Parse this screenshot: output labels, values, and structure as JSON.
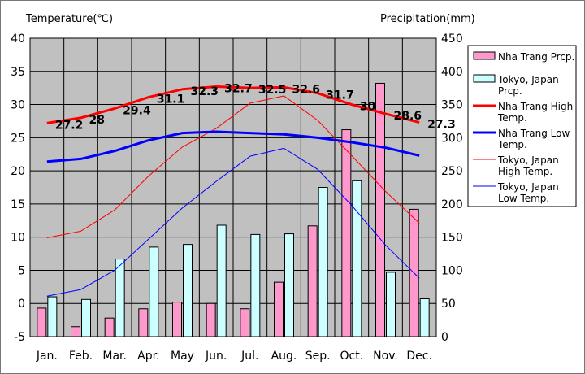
{
  "chart_data": {
    "type": "bar",
    "y_left_label": "Temperature(℃)",
    "y_right_label": "Precipitation(mm)",
    "y_left_range": [
      -5,
      40
    ],
    "y_left_ticks": [
      40,
      35,
      30,
      25,
      20,
      15,
      10,
      5,
      0,
      -5
    ],
    "y_right_range": [
      0,
      450
    ],
    "y_right_ticks": [
      450,
      400,
      350,
      300,
      250,
      200,
      150,
      100,
      50,
      0
    ],
    "grid": true,
    "plot_background": "#c0c0c0",
    "legend_placement": "right",
    "categories": [
      "Jan.",
      "Feb.",
      "Mar.",
      "Apr.",
      "May",
      "Jun.",
      "Jul.",
      "Aug.",
      "Sep.",
      "Oct.",
      "Nov.",
      "Dec."
    ],
    "bar_series": [
      {
        "name": "Nha Trang Prcp.",
        "axis": "right",
        "color": "#ff99cc",
        "values": [
          43,
          15,
          28,
          42,
          52,
          50,
          42,
          82,
          167,
          312,
          382,
          192
        ]
      },
      {
        "name": "Tokyo, Japan Prcp.",
        "axis": "right",
        "color": "#ccffff",
        "values": [
          60,
          56,
          117,
          135,
          139,
          168,
          154,
          155,
          225,
          235,
          97,
          57
        ]
      }
    ],
    "line_series": [
      {
        "name": "Nha Trang High Temp.",
        "axis": "left",
        "color": "#ff0000",
        "width": 3,
        "values": [
          27.2,
          28,
          29.4,
          31.1,
          32.3,
          32.7,
          32.5,
          32.6,
          31.7,
          30,
          28.6,
          27.3
        ],
        "labels": [
          "27.2",
          "28",
          "29.4",
          "31.1",
          "32.3",
          "32.7",
          "32.5",
          "32.6",
          "31.7",
          "30",
          "28.6",
          "27.3"
        ]
      },
      {
        "name": "Nha Trang Low Temp.",
        "axis": "left",
        "color": "#0000ff",
        "width": 3,
        "values": [
          21.4,
          21.8,
          23,
          24.6,
          25.7,
          25.9,
          25.7,
          25.5,
          25,
          24.3,
          23.5,
          22.3
        ]
      },
      {
        "name": "Tokyo, Japan High Temp.",
        "axis": "left",
        "color": "#ff0000",
        "width": 1,
        "values": [
          9.9,
          10.9,
          14.1,
          19.2,
          23.6,
          26.4,
          30.2,
          31.3,
          27.6,
          22.3,
          16.9,
          12.1
        ]
      },
      {
        "name": "Tokyo, Japan Low Temp.",
        "axis": "left",
        "color": "#0000ff",
        "width": 1,
        "values": [
          1.1,
          2.1,
          5,
          9.7,
          14.4,
          18.4,
          22.2,
          23.4,
          20.2,
          14.8,
          8.8,
          3.8
        ]
      }
    ]
  },
  "legend": [
    {
      "kind": "box",
      "lines": [
        "Nha Trang Prcp."
      ],
      "color": "#ff99cc"
    },
    {
      "kind": "box",
      "lines": [
        "Tokyo, Japan",
        "Prcp."
      ],
      "color": "#ccffff"
    },
    {
      "kind": "line",
      "lines": [
        "Nha Trang High",
        "Temp."
      ],
      "color": "#ff0000",
      "width": 3
    },
    {
      "kind": "line",
      "lines": [
        "Nha Trang Low",
        "Temp."
      ],
      "color": "#0000ff",
      "width": 3
    },
    {
      "kind": "line",
      "lines": [
        "Tokyo, Japan",
        "High Temp."
      ],
      "color": "#ff0000",
      "width": 1
    },
    {
      "kind": "line",
      "lines": [
        "Tokyo, Japan",
        "Low Temp."
      ],
      "color": "#0000ff",
      "width": 1
    }
  ]
}
